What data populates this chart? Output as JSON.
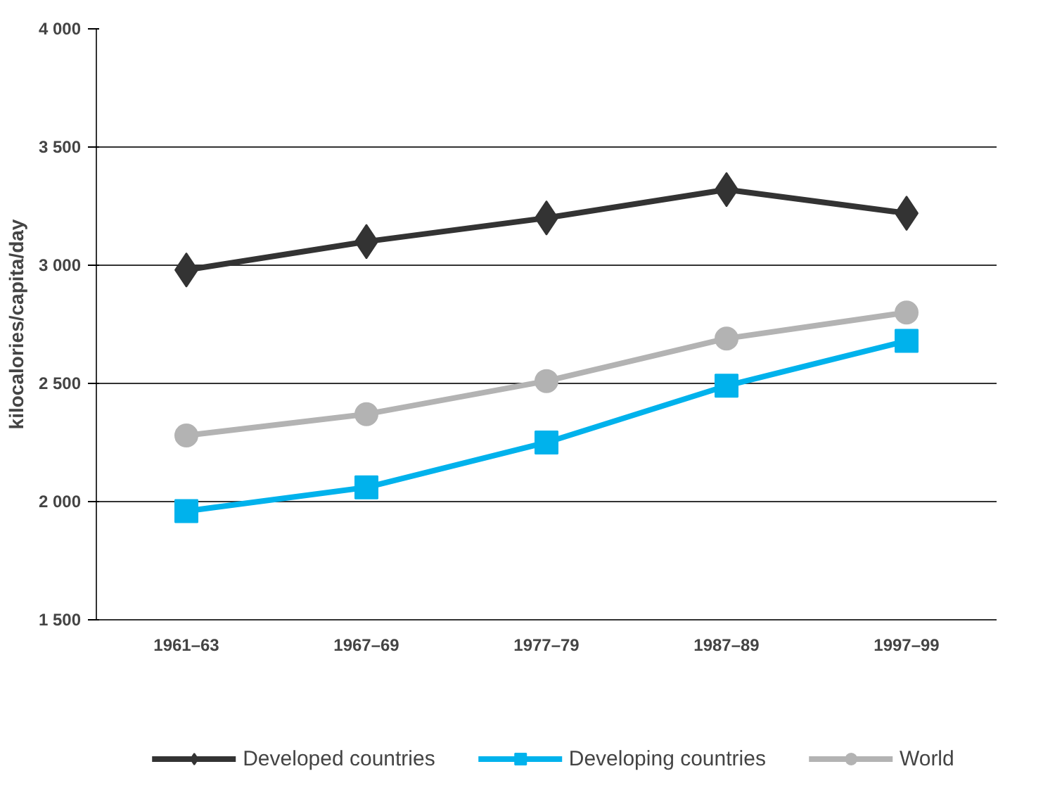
{
  "chart_data": {
    "type": "line",
    "ylabel": "kilocalories/capita/day",
    "categories": [
      "1961–63",
      "1967–69",
      "1977–79",
      "1987–89",
      "1997–99"
    ],
    "series": [
      {
        "name": "Developed countries",
        "color": "#333333",
        "marker": "diamond",
        "values": [
          2980,
          3100,
          3200,
          3320,
          3220
        ]
      },
      {
        "name": "Developing countries",
        "color": "#00b2ec",
        "marker": "square",
        "values": [
          1960,
          2060,
          2250,
          2490,
          2680
        ]
      },
      {
        "name": "World",
        "color": "#b3b3b3",
        "marker": "circle",
        "values": [
          2280,
          2370,
          2510,
          2690,
          2800
        ]
      }
    ],
    "ylim": [
      1500,
      4000
    ],
    "yticks": [
      {
        "value": 1500,
        "label": "1 500"
      },
      {
        "value": 2000,
        "label": "2 000"
      },
      {
        "value": 2500,
        "label": "2 500"
      },
      {
        "value": 3000,
        "label": "3 000"
      },
      {
        "value": 3500,
        "label": "3 500"
      },
      {
        "value": 4000,
        "label": "4 000"
      }
    ],
    "grid": "y",
    "legend": "bottom",
    "line_style": "solid"
  }
}
